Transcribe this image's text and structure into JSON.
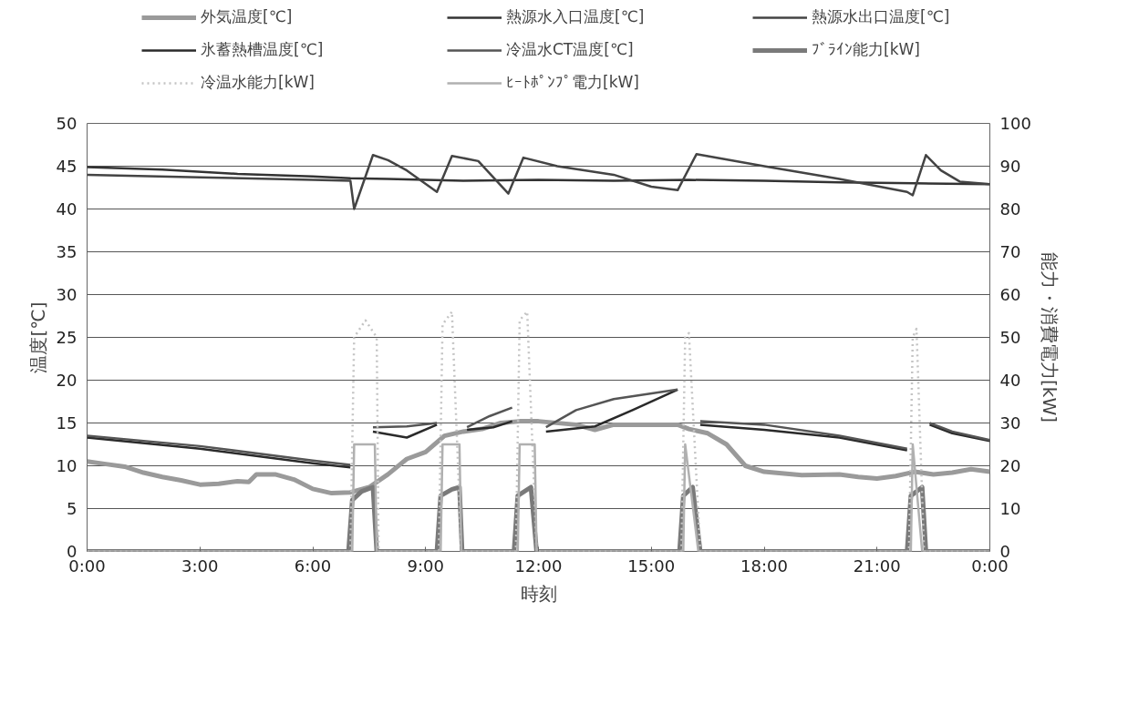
{
  "chart_data": {
    "type": "line",
    "xlabel": "時刻",
    "ylabel": "温度[℃]",
    "y2label": "能力・消費電力[kW]",
    "xlim": [
      0,
      24
    ],
    "xticks": [
      {
        "value": 0,
        "label": "0:00"
      },
      {
        "value": 3,
        "label": "3:00"
      },
      {
        "value": 6,
        "label": "6:00"
      },
      {
        "value": 9,
        "label": "9:00"
      },
      {
        "value": 12,
        "label": "12:00"
      },
      {
        "value": 15,
        "label": "15:00"
      },
      {
        "value": 18,
        "label": "18:00"
      },
      {
        "value": 21,
        "label": "21:00"
      },
      {
        "value": 24,
        "label": "0:00"
      }
    ],
    "ylim": [
      0,
      50
    ],
    "yticks": [
      0,
      5,
      10,
      15,
      20,
      25,
      30,
      35,
      40,
      45,
      50
    ],
    "y2lim": [
      0,
      100
    ],
    "y2ticks": [
      0,
      10,
      20,
      30,
      40,
      50,
      60,
      70,
      80,
      90,
      100
    ],
    "grid": "y",
    "legend": "top",
    "marker": "none",
    "line_style": "solid",
    "series": [
      {
        "name": "外気温度[℃]",
        "color": "#9a9a9a",
        "x": [
          0,
          0.5,
          1,
          1.5,
          2,
          2.5,
          3,
          3.5,
          4,
          4.3,
          4.5,
          5,
          5.5,
          6,
          6.5,
          7,
          7.5,
          8,
          8.5,
          9,
          9.5,
          10,
          10.5,
          11,
          11.5,
          12,
          13,
          13.5,
          14,
          15,
          15.7,
          16,
          16.5,
          17,
          17.5,
          18,
          19,
          20,
          20.5,
          21,
          21.5,
          22,
          22.5,
          23,
          23.5,
          24
        ],
        "values": [
          10.5,
          10.2,
          9.9,
          9.2,
          8.7,
          8.3,
          7.8,
          7.9,
          8.2,
          8.1,
          9.0,
          9.0,
          8.4,
          7.3,
          6.8,
          6.9,
          7.5,
          9.0,
          10.8,
          11.6,
          13.5,
          14.0,
          14.3,
          15.0,
          15.2,
          15.2,
          14.8,
          14.2,
          14.8,
          14.8,
          14.8,
          14.3,
          13.8,
          12.5,
          10.0,
          9.3,
          8.9,
          9.0,
          8.7,
          8.5,
          8.8,
          9.3,
          9.0,
          9.2,
          9.6,
          9.3
        ]
      },
      {
        "name": "熱源水入口温度[℃]",
        "color": "#333333",
        "x": [
          0,
          2,
          4,
          6,
          7,
          8,
          10,
          12,
          14,
          16,
          18,
          20,
          22,
          24
        ],
        "values": [
          44.9,
          44.6,
          44.1,
          43.8,
          43.6,
          43.5,
          43.3,
          43.4,
          43.3,
          43.4,
          43.3,
          43.1,
          43.0,
          42.9
        ]
      },
      {
        "name": "熱源水出口温度[℃]",
        "color": "#444444",
        "x": [
          0,
          3,
          6,
          7.0,
          7.1,
          7.6,
          8,
          8.5,
          9.3,
          9.7,
          10.4,
          11.2,
          11.6,
          12.5,
          14,
          15,
          15.7,
          16.2,
          18,
          20,
          21.8,
          21.95,
          22.3,
          22.7,
          23.2,
          24
        ],
        "values": [
          44.0,
          43.7,
          43.4,
          43.3,
          40.0,
          46.3,
          45.7,
          44.5,
          42.0,
          46.2,
          45.6,
          41.8,
          46.0,
          45.0,
          44.0,
          42.6,
          42.2,
          46.4,
          45.0,
          43.5,
          42.0,
          41.6,
          46.3,
          44.5,
          43.2,
          42.9
        ]
      },
      {
        "name": "氷蓄熱槽温度[℃]",
        "color": "#2a2a2a",
        "x": [
          0,
          3,
          6,
          7,
          7.3,
          7.6,
          8.5,
          9.3,
          9.6,
          10.1,
          10.8,
          11.3,
          11.7,
          12.2,
          13.5,
          14.5,
          15.7,
          16.0,
          16.3,
          18,
          20,
          21.8,
          22.1,
          22.4,
          23,
          24
        ],
        "values": [
          13.3,
          12.0,
          10.3,
          9.8,
          null,
          14.0,
          13.3,
          14.8,
          null,
          14.2,
          14.5,
          15.2,
          null,
          14.0,
          14.6,
          16.5,
          18.9,
          null,
          14.8,
          14.2,
          13.3,
          11.8,
          null,
          14.8,
          13.8,
          12.9
        ]
      },
      {
        "name": "冷温水CT温度[℃]",
        "color": "#555555",
        "x": [
          0,
          3,
          6,
          7,
          7.3,
          7.6,
          8.5,
          9.3,
          9.6,
          10.1,
          10.7,
          11.3,
          11.7,
          12.2,
          13,
          14,
          15.7,
          16.0,
          16.3,
          18,
          20,
          21.8,
          22.1,
          22.4,
          23,
          24
        ],
        "values": [
          13.5,
          12.3,
          10.6,
          10.1,
          null,
          14.5,
          14.6,
          15.0,
          null,
          14.5,
          15.8,
          16.8,
          null,
          14.5,
          16.5,
          17.8,
          18.9,
          null,
          15.2,
          14.8,
          13.5,
          12.0,
          null,
          15.0,
          14.0,
          13.0
        ]
      },
      {
        "name": "ﾌﾞﾗｲﾝ能力[kW]",
        "color": "#7a7a7a",
        "axis": "y2",
        "x": [
          0,
          6.95,
          7.05,
          7.3,
          7.6,
          7.7,
          9.3,
          9.4,
          9.7,
          9.9,
          9.97,
          11.35,
          11.45,
          11.8,
          11.95,
          15.75,
          15.85,
          16.1,
          16.3,
          21.8,
          21.9,
          22.2,
          22.3,
          24
        ],
        "values": [
          0,
          0,
          12,
          14,
          15,
          0,
          0,
          13,
          14.5,
          15,
          0,
          0,
          13,
          15,
          0,
          0,
          13,
          15,
          0,
          0,
          13,
          15,
          0,
          0
        ]
      },
      {
        "name": "冷温水能力[kW]",
        "color": "#c4c4c4",
        "axis": "y2",
        "line_style": "dotted",
        "x": [
          0,
          7.0,
          7.1,
          7.4,
          7.7,
          7.75,
          9.35,
          9.45,
          9.7,
          9.95,
          11.4,
          11.5,
          11.7,
          11.95,
          15.8,
          15.9,
          16.0,
          16.3,
          21.85,
          21.95,
          22.05,
          22.25,
          24
        ],
        "values": [
          0,
          0,
          50,
          54,
          50,
          0,
          0,
          53,
          56,
          0,
          0,
          54,
          56,
          0,
          0,
          50,
          51,
          0,
          0,
          50,
          52,
          0,
          0
        ]
      },
      {
        "name": "ﾋｰﾄﾎﾟﾝﾌﾟ電力[kW]",
        "color": "#b0b0b0",
        "axis": "y2",
        "x": [
          0,
          7.05,
          7.1,
          7.65,
          7.7,
          9.4,
          9.45,
          9.9,
          9.95,
          11.45,
          11.5,
          11.9,
          11.95,
          15.85,
          15.9,
          16.25,
          21.9,
          21.95,
          22.2,
          24
        ],
        "values": [
          0,
          0,
          25,
          25,
          0,
          0,
          25,
          25,
          0,
          0,
          25,
          25,
          0,
          0,
          25,
          0,
          0,
          25,
          0,
          0
        ]
      }
    ]
  }
}
